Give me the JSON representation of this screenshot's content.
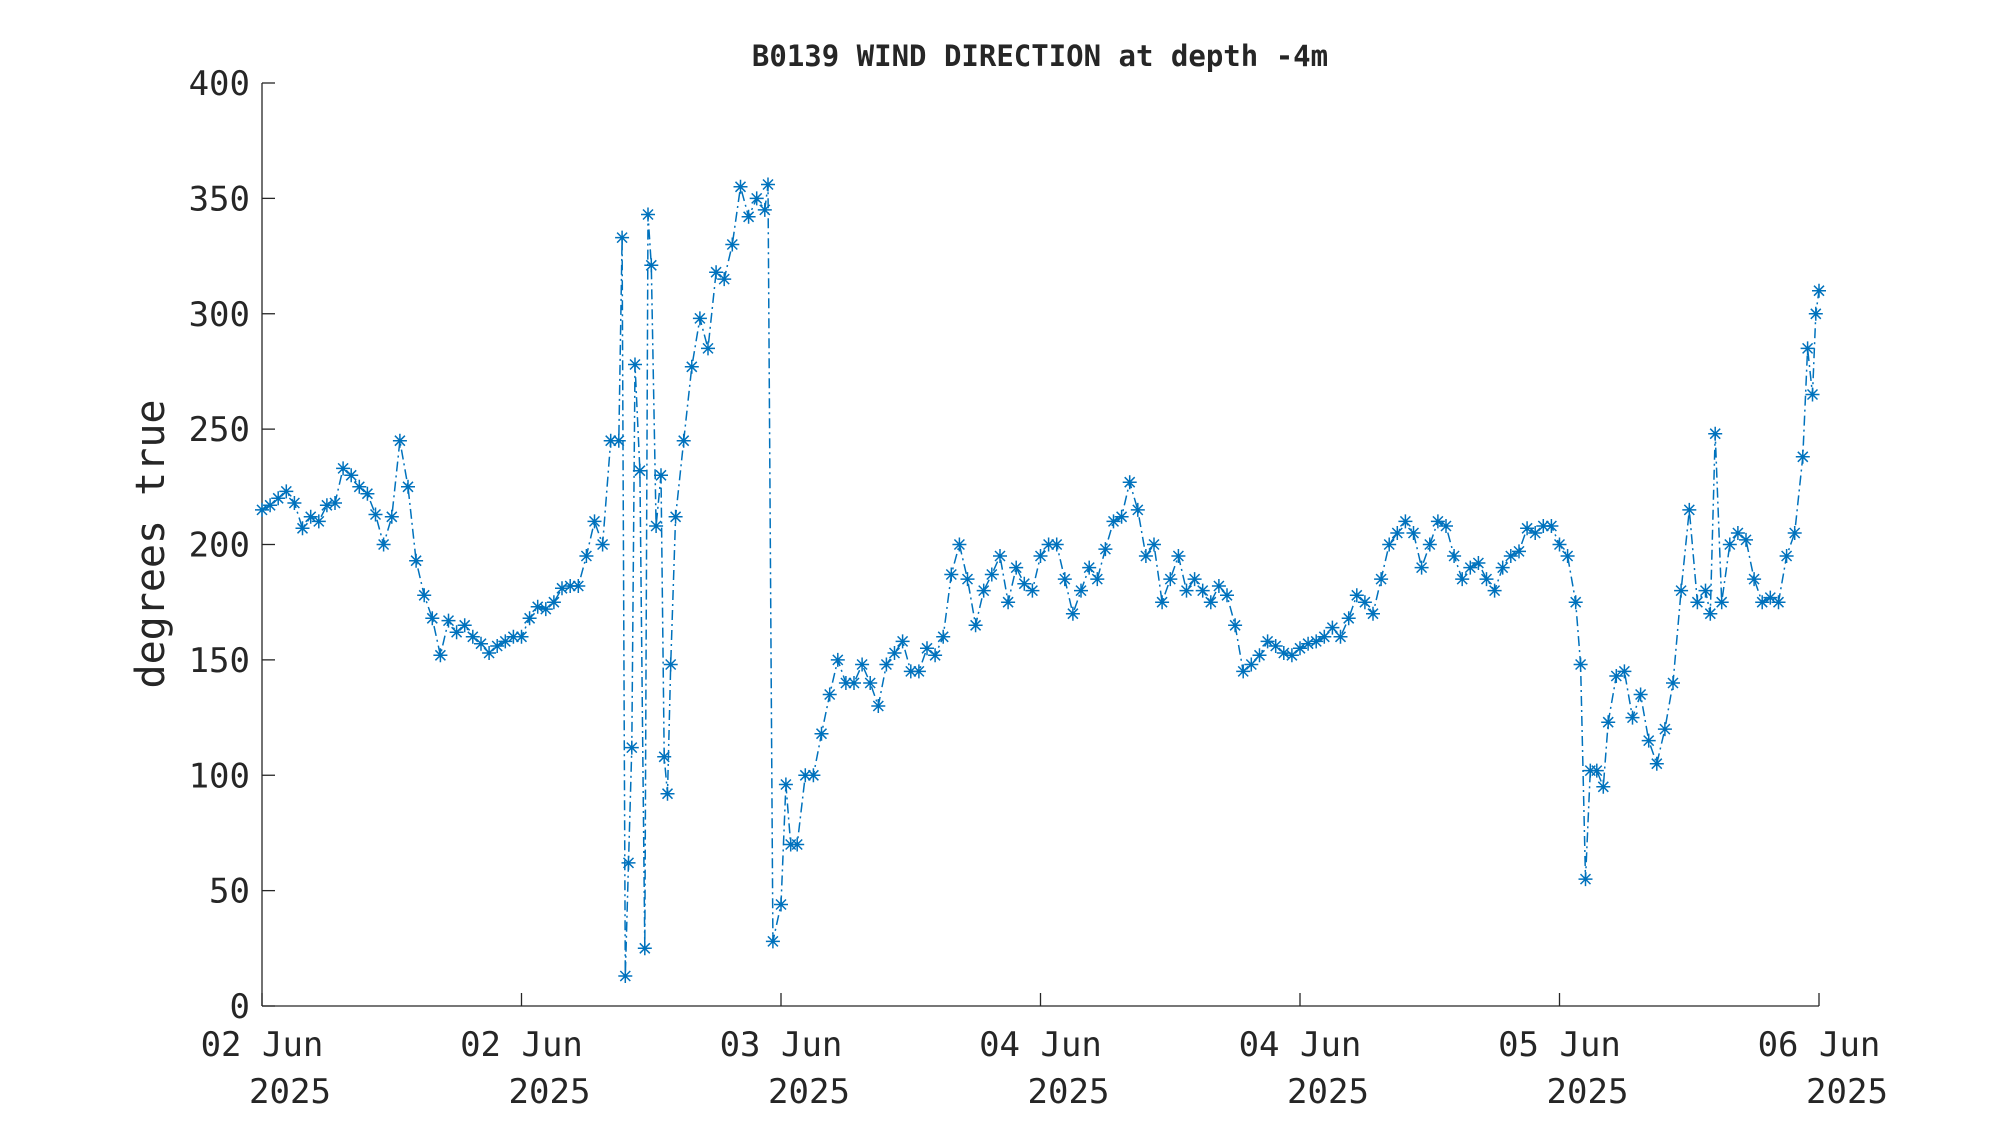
{
  "chart_data": {
    "type": "line",
    "title": "B0139 WIND DIRECTION at depth -4m",
    "ylabel": "degrees true",
    "x": [
      0,
      0.5,
      1,
      1.5,
      2,
      2.5,
      3,
      3.5,
      4,
      4.5,
      5,
      5.5,
      6,
      6.5,
      7,
      7.5,
      8,
      8.5,
      9,
      9.5,
      10,
      10.5,
      11,
      11.5,
      12,
      12.5,
      13,
      13.5,
      14,
      14.5,
      15,
      15.5,
      16,
      16.5,
      17,
      17.5,
      18,
      18.5,
      19,
      19.5,
      20,
      20.5,
      21,
      21.5,
      22,
      22.2,
      22.4,
      22.6,
      22.8,
      23,
      23.3,
      23.6,
      23.8,
      24,
      24.3,
      24.6,
      24.8,
      25,
      25.2,
      25.5,
      26,
      26.5,
      27,
      27.5,
      28,
      28.5,
      29,
      29.5,
      30,
      30.5,
      31,
      31.2,
      31.5,
      32,
      32.3,
      32.6,
      33,
      33.5,
      34,
      34.5,
      35,
      35.5,
      36,
      36.5,
      37,
      37.5,
      38,
      38.5,
      39,
      39.5,
      40,
      40.5,
      41,
      41.5,
      42,
      42.5,
      43,
      43.5,
      44,
      44.5,
      45,
      45.5,
      46,
      46.5,
      47,
      47.5,
      48,
      48.5,
      49,
      49.5,
      50,
      50.5,
      51,
      51.5,
      52,
      52.5,
      53,
      53.5,
      54,
      54.5,
      55,
      55.5,
      56,
      56.5,
      57,
      57.5,
      58,
      58.5,
      59,
      59.5,
      60,
      60.5,
      61,
      61.5,
      62,
      62.5,
      63,
      63.5,
      64,
      64.5,
      65,
      65.5,
      66,
      66.5,
      67,
      67.5,
      68,
      68.5,
      69,
      69.5,
      70,
      70.5,
      71,
      71.5,
      72,
      72.5,
      73,
      73.5,
      74,
      74.5,
      75,
      75.5,
      76,
      76.5,
      77,
      77.5,
      78,
      78.5,
      79,
      79.5,
      80,
      80.5,
      81,
      81.3,
      81.6,
      81.9,
      82.3,
      82.7,
      83,
      83.5,
      84,
      84.5,
      85,
      85.5,
      86,
      86.5,
      87,
      87.5,
      88,
      88.5,
      89,
      89.3,
      89.6,
      90,
      90.5,
      91,
      91.5,
      92,
      92.5,
      93,
      93.5,
      94,
      94.5,
      95,
      95.3,
      95.6,
      95.8,
      96
    ],
    "values": [
      215,
      217,
      220,
      223,
      218,
      207,
      212,
      210,
      217,
      218,
      233,
      230,
      225,
      222,
      213,
      200,
      212,
      245,
      225,
      193,
      178,
      168,
      152,
      167,
      162,
      165,
      160,
      157,
      153,
      156,
      158,
      160,
      160,
      168,
      173,
      172,
      175,
      181,
      182,
      182,
      195,
      210,
      200,
      245,
      245,
      333,
      13,
      62,
      112,
      278,
      232,
      25,
      343,
      321,
      208,
      230,
      108,
      92,
      148,
      212,
      245,
      277,
      298,
      285,
      318,
      315,
      330,
      355,
      342,
      350,
      345,
      356,
      28,
      44,
      96,
      70,
      70,
      100,
      100,
      118,
      135,
      150,
      140,
      140,
      148,
      140,
      130,
      148,
      153,
      158,
      145,
      145,
      155,
      152,
      160,
      187,
      200,
      185,
      165,
      180,
      187,
      195,
      175,
      190,
      183,
      180,
      195,
      200,
      200,
      185,
      170,
      180,
      190,
      185,
      198,
      210,
      212,
      227,
      215,
      195,
      200,
      175,
      185,
      195,
      180,
      185,
      180,
      175,
      182,
      178,
      165,
      145,
      148,
      152,
      158,
      156,
      153,
      152,
      155,
      157,
      158,
      160,
      164,
      160,
      168,
      178,
      175,
      170,
      185,
      200,
      205,
      210,
      205,
      190,
      200,
      210,
      208,
      195,
      185,
      190,
      192,
      185,
      180,
      190,
      195,
      197,
      207,
      205,
      208,
      208,
      200,
      195,
      175,
      148,
      55,
      102,
      102,
      95,
      123,
      143,
      145,
      125,
      135,
      115,
      105,
      120,
      140,
      180,
      215,
      175,
      180,
      170,
      248,
      175,
      200,
      205,
      202,
      185,
      175,
      177,
      175,
      195,
      205,
      238,
      285,
      265,
      300,
      310
    ],
    "color": "#0072bd",
    "xlim": [
      0,
      96
    ],
    "xticks": [
      {
        "value": 0,
        "label": [
          "02 Jun",
          "2025"
        ]
      },
      {
        "value": 16,
        "label": [
          "02 Jun",
          "2025"
        ]
      },
      {
        "value": 32,
        "label": [
          "03 Jun",
          "2025"
        ]
      },
      {
        "value": 48,
        "label": [
          "04 Jun",
          "2025"
        ]
      },
      {
        "value": 64,
        "label": [
          "04 Jun",
          "2025"
        ]
      },
      {
        "value": 80,
        "label": [
          "05 Jun",
          "2025"
        ]
      },
      {
        "value": 96,
        "label": [
          "06 Jun",
          "2025"
        ]
      }
    ],
    "ylim": [
      0,
      400
    ],
    "yticks": [
      0,
      50,
      100,
      150,
      200,
      250,
      300,
      350,
      400
    ],
    "grid": false
  }
}
